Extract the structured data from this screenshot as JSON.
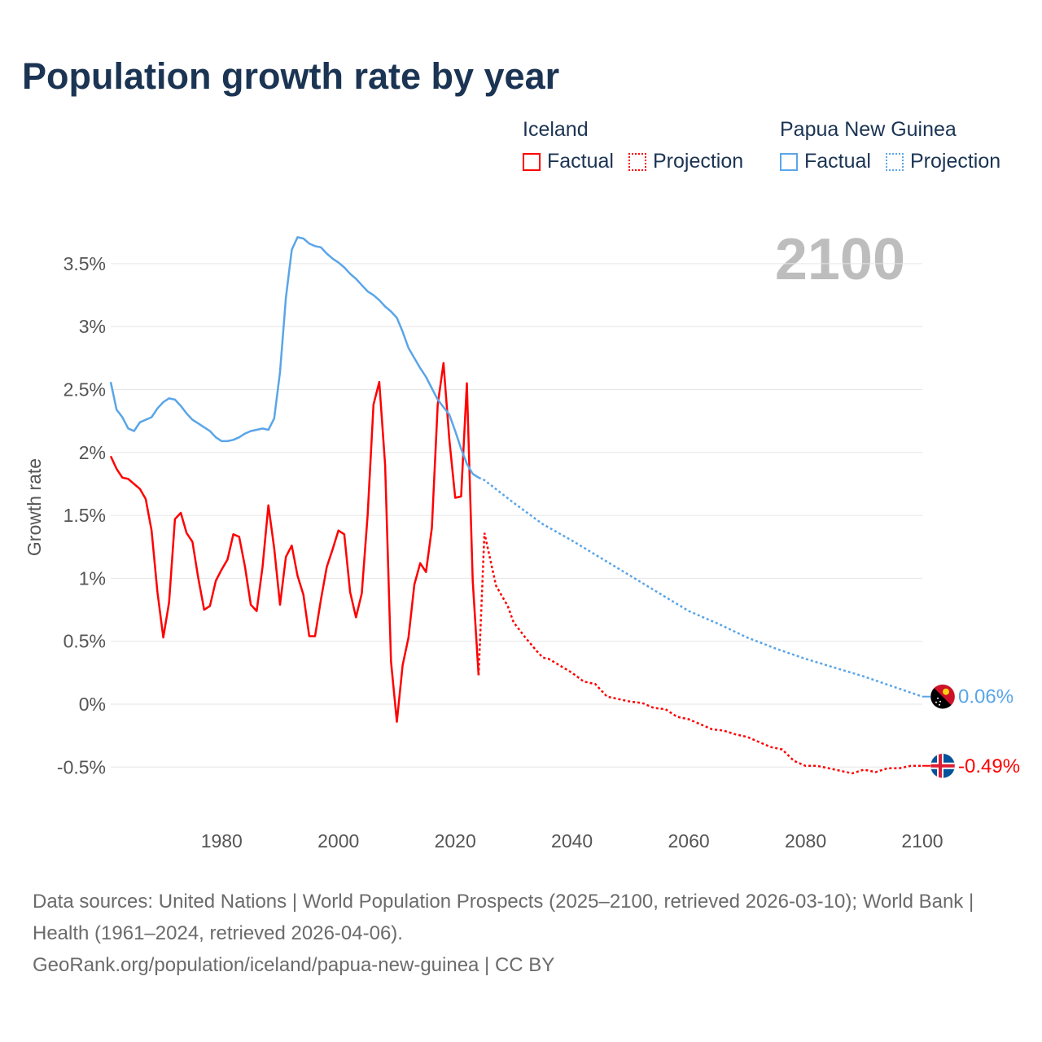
{
  "title": "Population growth rate by year",
  "year_display": "2100",
  "legend": [
    {
      "group": "Iceland",
      "color": "#ff0000",
      "items": [
        "Factual",
        "Projection"
      ]
    },
    {
      "group": "Papua New Guinea",
      "color": "#5aa5e8",
      "items": [
        "Factual",
        "Projection"
      ]
    }
  ],
  "footer": {
    "line1": "Data sources: United Nations | World Population Prospects (2025–2100, retrieved 2026-03-10); World Bank | Health (1961–2024, retrieved 2026-04-06).",
    "line2": "GeoRank.org/population/iceland/papua-new-guinea | CC BY"
  },
  "chart_data": {
    "type": "line",
    "title": "Population growth rate by year",
    "xlabel": "",
    "ylabel": "Growth rate",
    "xlim": [
      1961,
      2100
    ],
    "ylim": [
      -0.75,
      3.75
    ],
    "grid": true,
    "x_ticks": [
      1980,
      2000,
      2020,
      2040,
      2060,
      2080,
      2100
    ],
    "y_ticks": [
      {
        "value": -0.5,
        "label": "-0.5%"
      },
      {
        "value": 0,
        "label": "0%"
      },
      {
        "value": 0.5,
        "label": "0.5%"
      },
      {
        "value": 1,
        "label": "1%"
      },
      {
        "value": 1.5,
        "label": "1.5%"
      },
      {
        "value": 2,
        "label": "2%"
      },
      {
        "value": 2.5,
        "label": "2.5%"
      },
      {
        "value": 3,
        "label": "3%"
      },
      {
        "value": 3.5,
        "label": "3.5%"
      }
    ],
    "series": [
      {
        "name": "Iceland",
        "color": "#ff0000",
        "end_label": "-0.49%",
        "flag": "iceland-flag",
        "factual_start": 1961,
        "factual": [
          1.97,
          1.87,
          1.8,
          1.79,
          1.75,
          1.71,
          1.63,
          1.38,
          0.89,
          0.53,
          0.81,
          1.47,
          1.52,
          1.36,
          1.29,
          1.0,
          0.75,
          0.78,
          0.98,
          1.07,
          1.15,
          1.35,
          1.33,
          1.09,
          0.79,
          0.74,
          1.09,
          1.58,
          1.24,
          0.79,
          1.17,
          1.26,
          1.02,
          0.87,
          0.54,
          0.54,
          0.83,
          1.09,
          1.23,
          1.38,
          1.35,
          0.89,
          0.69,
          0.88,
          1.5,
          2.38,
          2.56,
          1.9,
          0.34,
          -0.14,
          0.31,
          0.53,
          0.95,
          1.12,
          1.05,
          1.4,
          2.38,
          2.71,
          2.1,
          1.64,
          1.65,
          2.55,
          0.98,
          0.23
        ],
        "projection": [
          [
            2024,
            0.23
          ],
          [
            2025,
            1.36
          ],
          [
            2027,
            0.94
          ],
          [
            2029,
            0.78
          ],
          [
            2030,
            0.65
          ],
          [
            2032,
            0.53
          ],
          [
            2034,
            0.42
          ],
          [
            2035,
            0.37
          ],
          [
            2036,
            0.36
          ],
          [
            2040,
            0.25
          ],
          [
            2042,
            0.18
          ],
          [
            2044,
            0.16
          ],
          [
            2046,
            0.06
          ],
          [
            2050,
            0.02
          ],
          [
            2052,
            0.01
          ],
          [
            2054,
            -0.03
          ],
          [
            2056,
            -0.04
          ],
          [
            2058,
            -0.1
          ],
          [
            2060,
            -0.12
          ],
          [
            2062,
            -0.16
          ],
          [
            2064,
            -0.2
          ],
          [
            2066,
            -0.21
          ],
          [
            2068,
            -0.24
          ],
          [
            2070,
            -0.26
          ],
          [
            2072,
            -0.3
          ],
          [
            2074,
            -0.34
          ],
          [
            2076,
            -0.36
          ],
          [
            2078,
            -0.45
          ],
          [
            2080,
            -0.49
          ],
          [
            2082,
            -0.49
          ],
          [
            2084,
            -0.51
          ],
          [
            2086,
            -0.53
          ],
          [
            2088,
            -0.55
          ],
          [
            2090,
            -0.52
          ],
          [
            2092,
            -0.54
          ],
          [
            2094,
            -0.51
          ],
          [
            2096,
            -0.51
          ],
          [
            2098,
            -0.49
          ],
          [
            2100,
            -0.49
          ]
        ]
      },
      {
        "name": "Papua New Guinea",
        "color": "#5aa5e8",
        "end_label": "0.06%",
        "flag": "papua-new-guinea-flag",
        "factual_start": 1961,
        "factual": [
          2.56,
          2.34,
          2.28,
          2.19,
          2.17,
          2.24,
          2.26,
          2.28,
          2.35,
          2.4,
          2.43,
          2.42,
          2.37,
          2.31,
          2.26,
          2.23,
          2.2,
          2.17,
          2.12,
          2.09,
          2.09,
          2.1,
          2.12,
          2.15,
          2.17,
          2.18,
          2.19,
          2.18,
          2.27,
          2.64,
          3.23,
          3.61,
          3.71,
          3.7,
          3.66,
          3.64,
          3.63,
          3.58,
          3.54,
          3.51,
          3.47,
          3.42,
          3.38,
          3.33,
          3.28,
          3.25,
          3.21,
          3.16,
          3.12,
          3.07,
          2.96,
          2.83,
          2.75,
          2.67,
          2.6,
          2.51,
          2.42,
          2.36,
          2.3,
          2.17,
          2.03,
          1.91,
          1.83,
          1.8
        ],
        "projection": [
          [
            2024,
            1.8
          ],
          [
            2025,
            1.78
          ],
          [
            2030,
            1.6
          ],
          [
            2035,
            1.43
          ],
          [
            2040,
            1.3
          ],
          [
            2045,
            1.16
          ],
          [
            2050,
            1.02
          ],
          [
            2055,
            0.88
          ],
          [
            2060,
            0.74
          ],
          [
            2065,
            0.64
          ],
          [
            2070,
            0.53
          ],
          [
            2075,
            0.44
          ],
          [
            2080,
            0.36
          ],
          [
            2085,
            0.29
          ],
          [
            2090,
            0.22
          ],
          [
            2095,
            0.14
          ],
          [
            2100,
            0.06
          ]
        ]
      }
    ]
  }
}
